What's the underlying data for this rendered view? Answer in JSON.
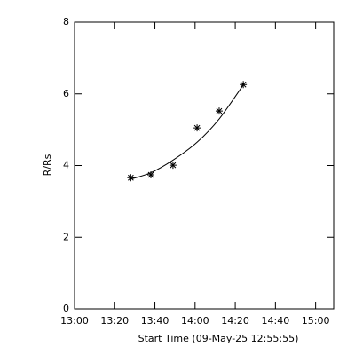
{
  "chart_data": {
    "type": "scatter",
    "x_label": "Start Time (09-May-25 12:55:55)",
    "y_label": "R/Rs",
    "x": [
      "13:28",
      "13:38",
      "13:49",
      "14:01",
      "14:12",
      "14:24"
    ],
    "series": [
      {
        "color": "#000000",
        "marker": "asterisk",
        "values": [
          3.66,
          3.74,
          4.01,
          5.05,
          5.52,
          6.26
        ]
      },
      {
        "color": "#000000",
        "marker": "line",
        "values": [
          3.62,
          3.8,
          4.15,
          4.65,
          5.3,
          6.25
        ]
      }
    ],
    "xlim": [
      "13:00",
      "15:09"
    ],
    "xticks": [
      "13:00",
      "13:20",
      "13:40",
      "14:00",
      "14:20",
      "14:40",
      "15:00"
    ],
    "ylim": [
      0,
      8
    ],
    "yticks": [
      0,
      2,
      4,
      6,
      8
    ]
  }
}
